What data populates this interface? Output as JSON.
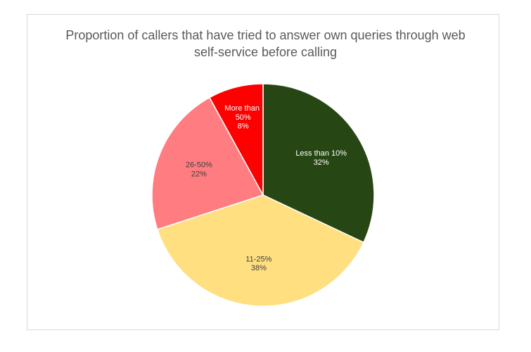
{
  "chart_data": {
    "type": "pie",
    "title": "Proportion of callers that have tried to answer own queries through web self-service before calling",
    "categories": [
      "Less than 10%",
      "11-25%",
      "26-50%",
      "More than 50%"
    ],
    "values": [
      32,
      38,
      22,
      8
    ],
    "value_labels": [
      "32%",
      "38%",
      "22%",
      "8%"
    ],
    "colors": [
      "#264713",
      "#FFDF80",
      "#FF7C80",
      "#FF0000"
    ]
  }
}
